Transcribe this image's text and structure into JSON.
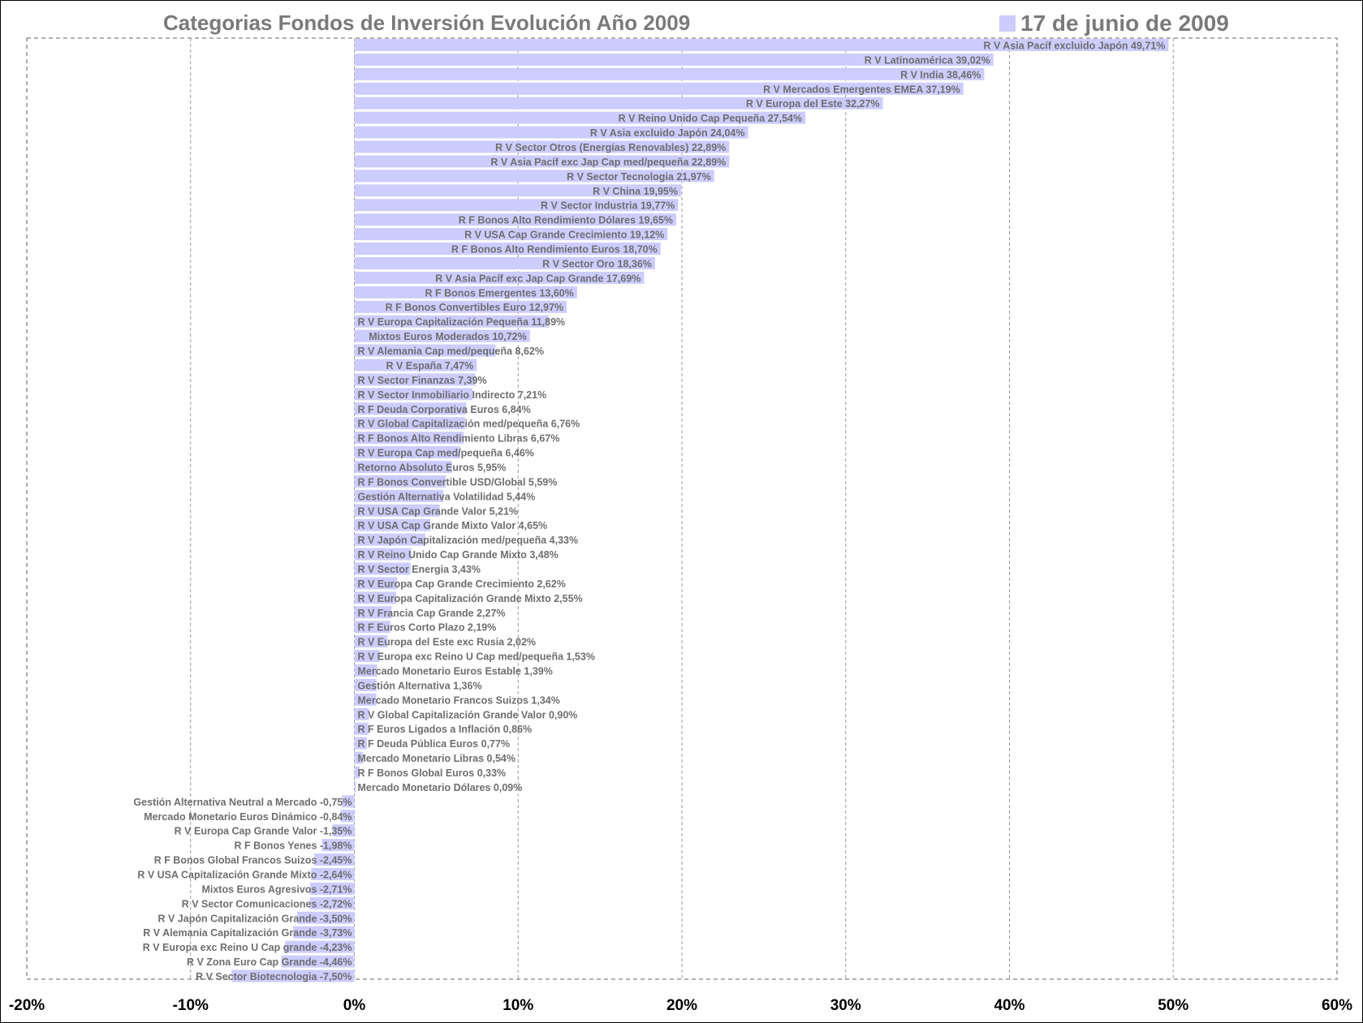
{
  "chart_data": {
    "type": "bar",
    "orientation": "horizontal",
    "title": "Categorias Fondos de Inversión Evolución Año 2009",
    "legend": {
      "position": "top-right",
      "entries": [
        "17 de junio de 2009"
      ]
    },
    "colors": {
      "bar": "#ccccff",
      "grid": "#9a9a9a",
      "border": "#808080"
    },
    "xlim": [
      -0.2,
      0.6
    ],
    "grid": true,
    "x_ticks": [
      -0.2,
      -0.1,
      0,
      0.1,
      0.2,
      0.3,
      0.4,
      0.5,
      0.6
    ],
    "x_tick_labels": [
      "-20%",
      "-10%",
      "0%",
      "10%",
      "20%",
      "30%",
      "40%",
      "50%",
      "60%"
    ],
    "series": [
      {
        "name": "17 de junio de 2009",
        "categories": [
          "R V Asia Pacíf excluido Japón",
          "R V Latinoamérica",
          "R V India",
          "R V Mercados Emergentes EMEA",
          "R V Europa del Este",
          "R V Reino Unido Cap Pequeña",
          "R V Asia excluido Japón",
          "R V Sector Otros (Energías Renovables)",
          "R V Asia Pacíf exc Jap Cap med/pequeña",
          "R V Sector Tecnologia",
          "R V China",
          "R V Sector Industria",
          "R F Bonos Alto Rendimiento Dólares",
          "R V USA Cap Grande Crecimiento",
          "R F Bonos Alto Rendimiento Euros",
          "R V Sector Oro",
          "R V Asia Pacíf exc Jap Cap Grande",
          "R F Bonos Emergentes",
          "R F Bonos Convertibles Euro",
          "R V Europa Capitalización Pequeña",
          "Mixtos Euros Moderados",
          "R V Alemania Cap med/pequeña",
          "R V España",
          "R V Sector Finanzas",
          "R V Sector Inmobiliario Indirecto",
          "R F Deuda Corporativa Euros",
          "R V Global Capitalización med/pequeña",
          "R F Bonos Alto Rendimiento Libras",
          "R V Europa Cap med/pequeña",
          "Retorno Absoluto Euros",
          "R F Bonos Convertible USD/Global",
          "Gestión Alternativa Volatilidad",
          "R V USA Cap Grande Valor",
          "R V USA Cap Grande Mixto Valor",
          "R V Japón Capitalización med/pequeña",
          "R V Reino Unido Cap Grande Mixto",
          "R V Sector Energia",
          "R V Europa Cap Grande Crecimiento",
          "R V Europa Capitalización Grande Mixto",
          "R V Francia Cap Grande",
          "R F Euros Corto Plazo",
          "R V Europa del Este exc Rusia",
          "R V Europa exc Reino U Cap med/pequeña",
          "Mercado Monetario Euros Estable",
          "Gestión Alternativa",
          "Mercado Monetario Francos Suizos",
          "R V Global Capitalización Grande Valor",
          "R F Euros Ligados a Inflación",
          "R F Deuda Pública Euros",
          "Mercado Monetario Libras",
          "R F Bonos Global Euros",
          "Mercado Monetario Dólares",
          "Gestión Alternativa Neutral a Mercado",
          "Mercado Monetario Euros Dinámico",
          "R V Europa Cap Grande Valor",
          "R F Bonos Yenes",
          "R F Bonos Global Francos Suizos",
          "R V USA Capitalización Grande Mixto",
          "Mixtos Euros Agresivos",
          "R V Sector Comunicaciones",
          "R V Japón Capitalización Grande",
          "R V Alemania Capitalización Grande",
          "R V Europa exc Reino U Cap grande",
          "R V Zona Euro Cap Grande",
          "R V Sector Biotecnologia"
        ],
        "values": [
          0.4971,
          0.3902,
          0.3846,
          0.3719,
          0.3227,
          0.2754,
          0.2404,
          0.2289,
          0.2289,
          0.2197,
          0.1995,
          0.1977,
          0.1965,
          0.1912,
          0.187,
          0.1836,
          0.1769,
          0.136,
          0.1297,
          0.1189,
          0.1072,
          0.0862,
          0.0747,
          0.0739,
          0.0721,
          0.0684,
          0.0676,
          0.0667,
          0.0646,
          0.0595,
          0.0559,
          0.0544,
          0.0521,
          0.0465,
          0.0433,
          0.0348,
          0.0343,
          0.0262,
          0.0255,
          0.0227,
          0.0219,
          0.0202,
          0.0153,
          0.0139,
          0.0136,
          0.0134,
          0.009,
          0.0086,
          0.0077,
          0.0054,
          0.0033,
          0.0009,
          -0.0075,
          -0.0084,
          -0.0135,
          -0.0198,
          -0.0245,
          -0.0264,
          -0.0271,
          -0.0272,
          -0.035,
          -0.0373,
          -0.0423,
          -0.0446,
          -0.075
        ],
        "labels": [
          "R V Asia Pacíf excluido Japón 49,71%",
          "R V Latinoamérica 39,02%",
          "R V India 38,46%",
          "R V Mercados Emergentes EMEA 37,19%",
          "R V Europa del Este 32,27%",
          "R V Reino Unido Cap Pequeña 27,54%",
          "R V Asia excluido Japón 24,04%",
          "R V Sector Otros (Energías Renovables) 22,89%",
          "R V Asia Pacíf exc Jap Cap med/pequeña 22,89%",
          "R V Sector Tecnologia 21,97%",
          "R V China 19,95%",
          "R V Sector Industria 19,77%",
          "R F Bonos Alto Rendimiento Dólares 19,65%",
          "R V USA Cap Grande Crecimiento 19,12%",
          "R F Bonos Alto Rendimiento Euros 18,70%",
          "R V Sector Oro 18,36%",
          "R V Asia Pacíf exc Jap Cap Grande 17,69%",
          "R F Bonos Emergentes 13,60%",
          "R F Bonos Convertibles Euro 12,97%",
          "R V Europa Capitalización Pequeña 11,89%",
          "Mixtos Euros Moderados 10,72%",
          "R V Alemania Cap med/pequeña 8,62%",
          "R V España 7,47%",
          "R V Sector Finanzas 7,39%",
          "R V Sector Inmobiliario Indirecto 7,21%",
          "R F Deuda Corporativa Euros 6,84%",
          "R V Global Capitalización med/pequeña 6,76%",
          "R F Bonos Alto Rendimiento Libras 6,67%",
          "R V Europa Cap med/pequeña 6,46%",
          "Retorno Absoluto Euros 5,95%",
          "R F Bonos Convertible USD/Global 5,59%",
          "Gestión Alternativa Volatilidad 5,44%",
          "R V USA Cap Grande Valor 5,21%",
          "R V USA Cap Grande Mixto Valor 4,65%",
          "R V Japón Capitalización med/pequeña 4,33%",
          "R V Reino Unido Cap Grande Mixto 3,48%",
          "R V Sector Energia 3,43%",
          "R V Europa Cap Grande Crecimiento 2,62%",
          "R V Europa Capitalización Grande Mixto 2,55%",
          "R V Francia Cap Grande 2,27%",
          "R F Euros Corto Plazo 2,19%",
          "R V Europa del Este exc Rusia 2,02%",
          "R V Europa exc Reino U Cap med/pequeña 1,53%",
          "Mercado Monetario Euros Estable 1,39%",
          "Gestión Alternativa 1,36%",
          "Mercado Monetario Francos Suizos 1,34%",
          "R V Global Capitalización Grande Valor 0,90%",
          "R F Euros Ligados a Inflación 0,86%",
          "R F Deuda Pública Euros 0,77%",
          "Mercado Monetario Libras 0,54%",
          "R F Bonos Global Euros 0,33%",
          "Mercado Monetario Dólares 0,09%",
          "Gestión Alternativa Neutral a Mercado -0,75%",
          "Mercado Monetario Euros Dinámico -0,84%",
          "R V Europa Cap Grande Valor -1,35%",
          "R F Bonos Yenes -1,98%",
          "R F Bonos Global Francos Suizos -2,45%",
          "R V USA Capitalización Grande Mixto -2,64%",
          "Mixtos Euros Agresivos -2,71%",
          "R V Sector Comunicaciones -2,72%",
          "R V Japón Capitalización Grande -3,50%",
          "R V Alemania Capitalización Grande -3,73%",
          "R V Europa exc Reino U Cap grande -4,23%",
          "R V Zona Euro Cap Grande -4,46%",
          "R V Sector Biotecnologia -7,50%"
        ]
      }
    ]
  }
}
